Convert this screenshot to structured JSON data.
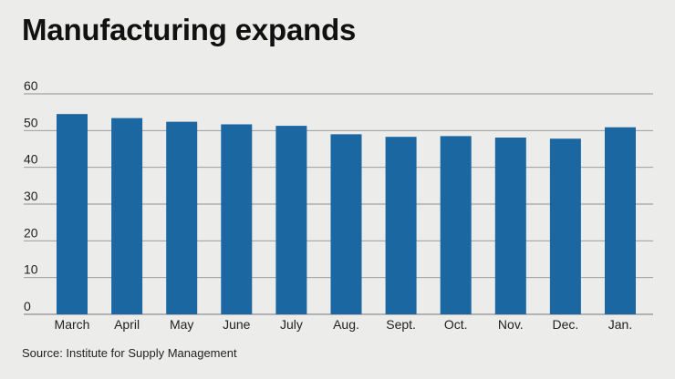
{
  "title": "Manufacturing expands",
  "source": "Source: Institute for Supply Management",
  "colors": {
    "bar": "#1b67a1",
    "grid": "#8e9092",
    "background": "#ecedeb"
  },
  "chart_data": {
    "type": "bar",
    "title": "Manufacturing expands",
    "xlabel": "",
    "ylabel": "",
    "categories": [
      "March",
      "April",
      "May",
      "June",
      "July",
      "Aug.",
      "Sept.",
      "Oct.",
      "Nov.",
      "Dec.",
      "Jan."
    ],
    "values": [
      54.5,
      53.4,
      52.4,
      51.7,
      51.3,
      49.0,
      48.3,
      48.5,
      48.1,
      47.8,
      50.9
    ],
    "ylim": [
      0,
      60
    ],
    "yticks": [
      0,
      10,
      20,
      30,
      40,
      50,
      60
    ],
    "grid": true,
    "legend": "none"
  }
}
